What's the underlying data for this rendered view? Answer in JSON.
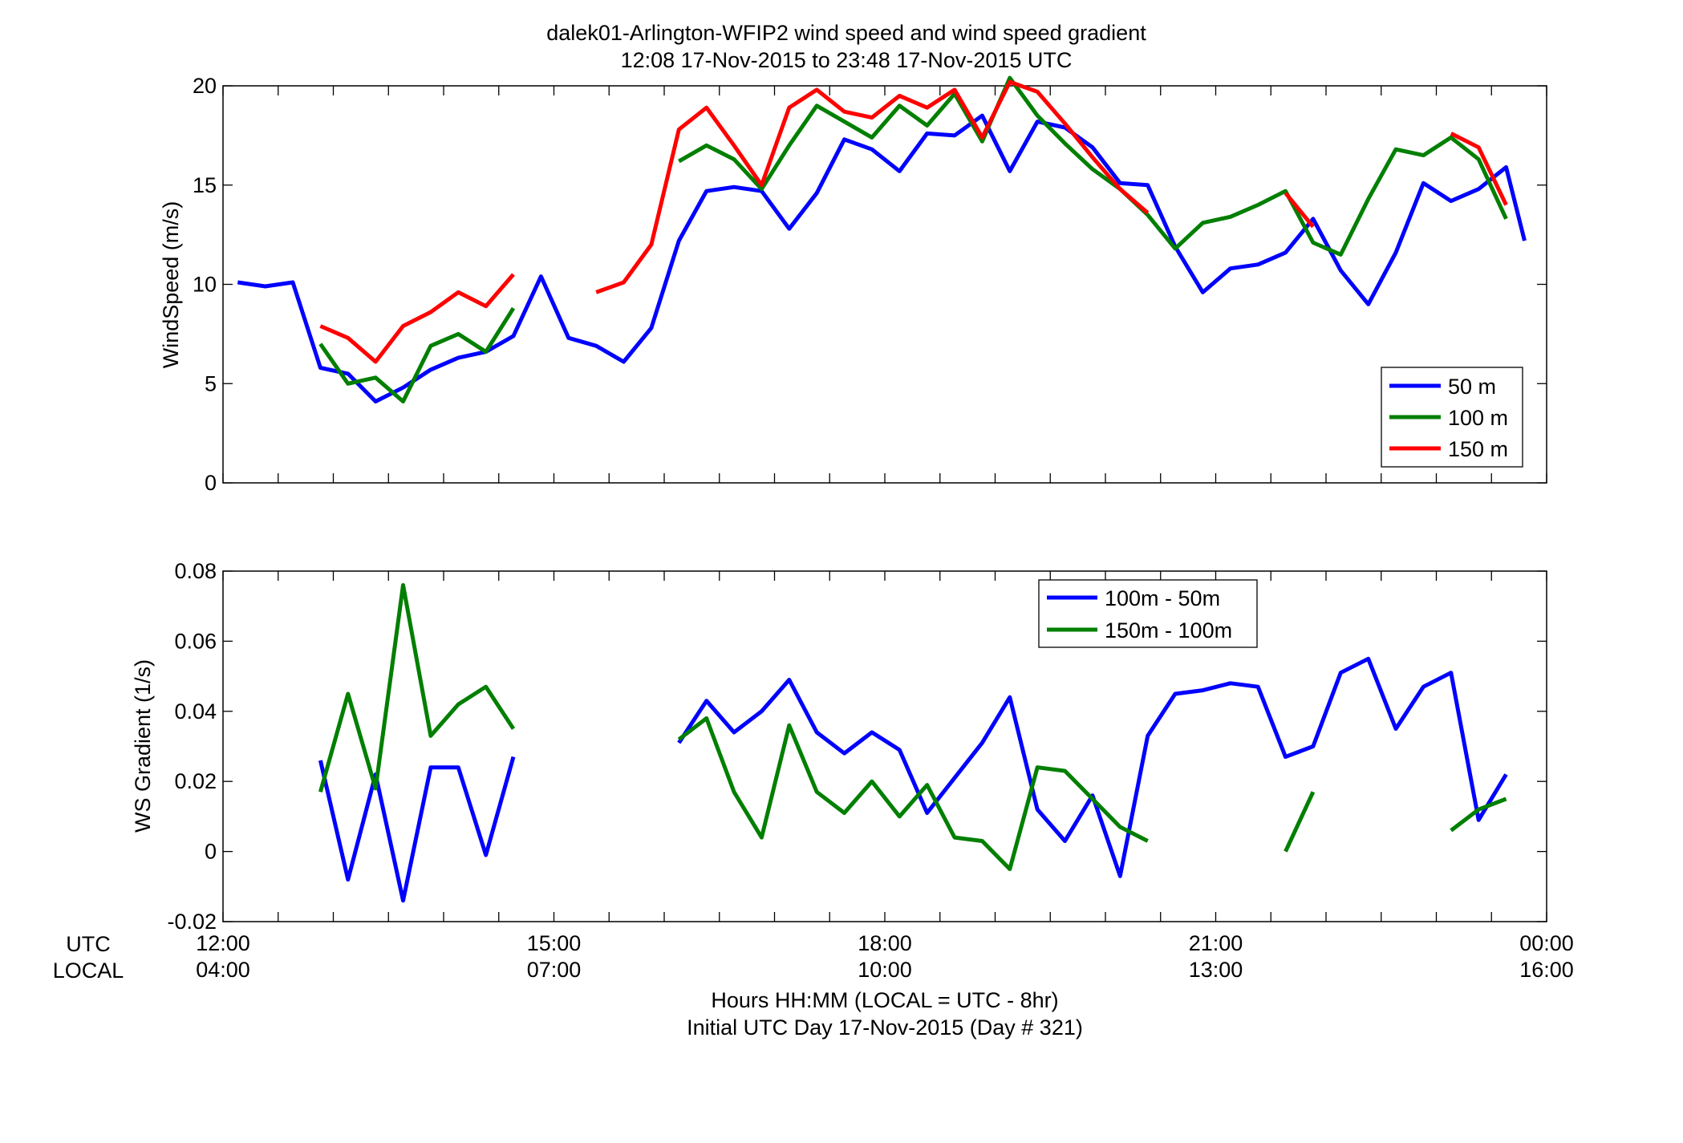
{
  "figure": {
    "title_line1": "dalek01-Arlington-WFIP2  wind speed and wind speed gradient",
    "title_line2": "12:08 17-Nov-2015 to 23:48 17-Nov-2015  UTC",
    "xlabel_line1": "Hours HH:MM  (LOCAL = UTC - 8hr)",
    "xlabel_line2": "Initial UTC Day 17-Nov-2015 (Day # 321)",
    "row_label_utc": "UTC",
    "row_label_local": "LOCAL"
  },
  "colors": {
    "blue": "#0000ff",
    "green": "#007f00",
    "red": "#ff0000"
  },
  "chart_data": [
    {
      "type": "line",
      "ylabel": "WindSpeed (m/s)",
      "xlim": [
        12.0,
        24.0
      ],
      "ylim": [
        0,
        20
      ],
      "yticks": [
        0,
        5,
        10,
        15,
        20
      ],
      "xticks_utc": [
        {
          "h": 12,
          "label": "12:00"
        },
        {
          "h": 15,
          "label": "15:00"
        },
        {
          "h": 18,
          "label": "18:00"
        },
        {
          "h": 21,
          "label": "21:00"
        },
        {
          "h": 24,
          "label": "00:00"
        }
      ],
      "xticks_local": [
        "04:00",
        "07:00",
        "10:00",
        "13:00",
        "16:00"
      ],
      "legend_position": "lower-right",
      "x_hours": [
        12.133,
        12.383,
        12.633,
        12.883,
        13.133,
        13.383,
        13.633,
        13.883,
        14.133,
        14.383,
        14.633,
        14.883,
        15.133,
        15.383,
        15.633,
        15.883,
        16.133,
        16.383,
        16.633,
        16.883,
        17.133,
        17.383,
        17.633,
        17.883,
        18.133,
        18.383,
        18.633,
        18.883,
        19.133,
        19.383,
        19.633,
        19.883,
        20.133,
        20.383,
        20.633,
        20.883,
        21.133,
        21.383,
        21.633,
        21.883,
        22.133,
        22.383,
        22.633,
        22.883,
        23.133,
        23.383,
        23.633,
        23.8
      ],
      "series": [
        {
          "name": "50 m",
          "color": "#0000ff",
          "values": [
            10.1,
            9.9,
            10.1,
            5.8,
            5.5,
            4.1,
            4.8,
            5.7,
            6.3,
            6.6,
            7.4,
            10.4,
            7.3,
            6.9,
            6.1,
            7.8,
            12.2,
            14.7,
            14.9,
            14.7,
            12.8,
            14.6,
            17.3,
            16.8,
            15.7,
            17.6,
            17.5,
            18.5,
            15.7,
            18.2,
            17.9,
            16.9,
            15.1,
            15.0,
            11.9,
            9.6,
            10.8,
            11.0,
            11.6,
            13.3,
            10.7,
            9.0,
            11.6,
            15.1,
            14.2,
            14.8,
            15.9,
            12.2
          ]
        },
        {
          "name": "100 m",
          "color": "#007f00",
          "values": [
            null,
            null,
            null,
            7.0,
            5.0,
            5.3,
            4.1,
            6.9,
            7.5,
            6.6,
            8.8,
            null,
            null,
            null,
            null,
            null,
            16.2,
            17.0,
            16.3,
            14.8,
            17.0,
            19.0,
            18.2,
            17.4,
            19.0,
            18.0,
            19.6,
            17.2,
            20.4,
            18.5,
            17.1,
            15.8,
            14.8,
            13.5,
            11.8,
            13.1,
            13.4,
            14.0,
            14.7,
            12.1,
            11.5,
            14.3,
            16.8,
            16.5,
            17.4,
            16.3,
            13.3,
            null
          ]
        },
        {
          "name": "150 m",
          "color": "#ff0000",
          "values": [
            null,
            null,
            null,
            7.9,
            7.3,
            6.1,
            7.9,
            8.6,
            9.6,
            8.9,
            10.5,
            null,
            null,
            9.6,
            10.1,
            12.0,
            17.8,
            18.9,
            17.0,
            15.0,
            18.9,
            19.8,
            18.7,
            18.4,
            19.5,
            18.9,
            19.8,
            17.4,
            20.2,
            19.7,
            18.1,
            16.4,
            14.8,
            13.6,
            null,
            null,
            null,
            null,
            14.6,
            12.9,
            null,
            null,
            null,
            null,
            17.6,
            16.9,
            14.0,
            null
          ]
        }
      ]
    },
    {
      "type": "line",
      "ylabel": "WS Gradient (1/s)",
      "xlim": [
        12.0,
        24.0
      ],
      "ylim": [
        -0.02,
        0.08
      ],
      "yticks": [
        -0.02,
        0,
        0.02,
        0.04,
        0.06,
        0.08
      ],
      "ytick_labels": [
        "-0.02",
        "0",
        "0.02",
        "0.04",
        "0.06",
        "0.08"
      ],
      "legend_position": "top-right",
      "x_hours": [
        12.883,
        13.133,
        13.383,
        13.633,
        13.883,
        14.133,
        14.383,
        14.633,
        14.883,
        15.133,
        15.383,
        15.633,
        15.883,
        16.133,
        16.383,
        16.633,
        16.883,
        17.133,
        17.383,
        17.633,
        17.883,
        18.133,
        18.383,
        18.633,
        18.883,
        19.133,
        19.383,
        19.633,
        19.883,
        20.133,
        20.383,
        20.633,
        20.883,
        21.133,
        21.383,
        21.633,
        21.883,
        22.133,
        22.383,
        22.633,
        22.883,
        23.133,
        23.383,
        23.633,
        23.8
      ],
      "series": [
        {
          "name": "100m - 50m",
          "color": "#0000ff",
          "values": [
            0.026,
            -0.008,
            0.022,
            -0.014,
            0.024,
            0.024,
            -0.001,
            0.027,
            null,
            null,
            null,
            null,
            null,
            0.031,
            0.043,
            0.034,
            0.04,
            0.049,
            0.034,
            0.028,
            0.034,
            0.029,
            0.011,
            0.021,
            0.031,
            0.044,
            0.012,
            0.003,
            0.016,
            -0.007,
            0.033,
            0.045,
            0.046,
            0.048,
            0.047,
            0.027,
            0.03,
            0.051,
            0.055,
            0.035,
            0.047,
            0.051,
            0.009,
            0.022,
            null
          ]
        },
        {
          "name": "150m - 100m",
          "color": "#007f00",
          "values": [
            0.017,
            0.045,
            0.018,
            0.076,
            0.033,
            0.042,
            0.047,
            0.035,
            null,
            null,
            null,
            null,
            null,
            0.032,
            0.038,
            0.017,
            0.004,
            0.036,
            0.017,
            0.011,
            0.02,
            0.01,
            0.019,
            0.004,
            0.003,
            -0.005,
            0.024,
            0.023,
            0.015,
            0.007,
            0.003,
            null,
            null,
            null,
            null,
            0.0,
            0.017,
            null,
            null,
            null,
            null,
            0.006,
            0.012,
            0.015,
            null
          ]
        }
      ]
    }
  ]
}
